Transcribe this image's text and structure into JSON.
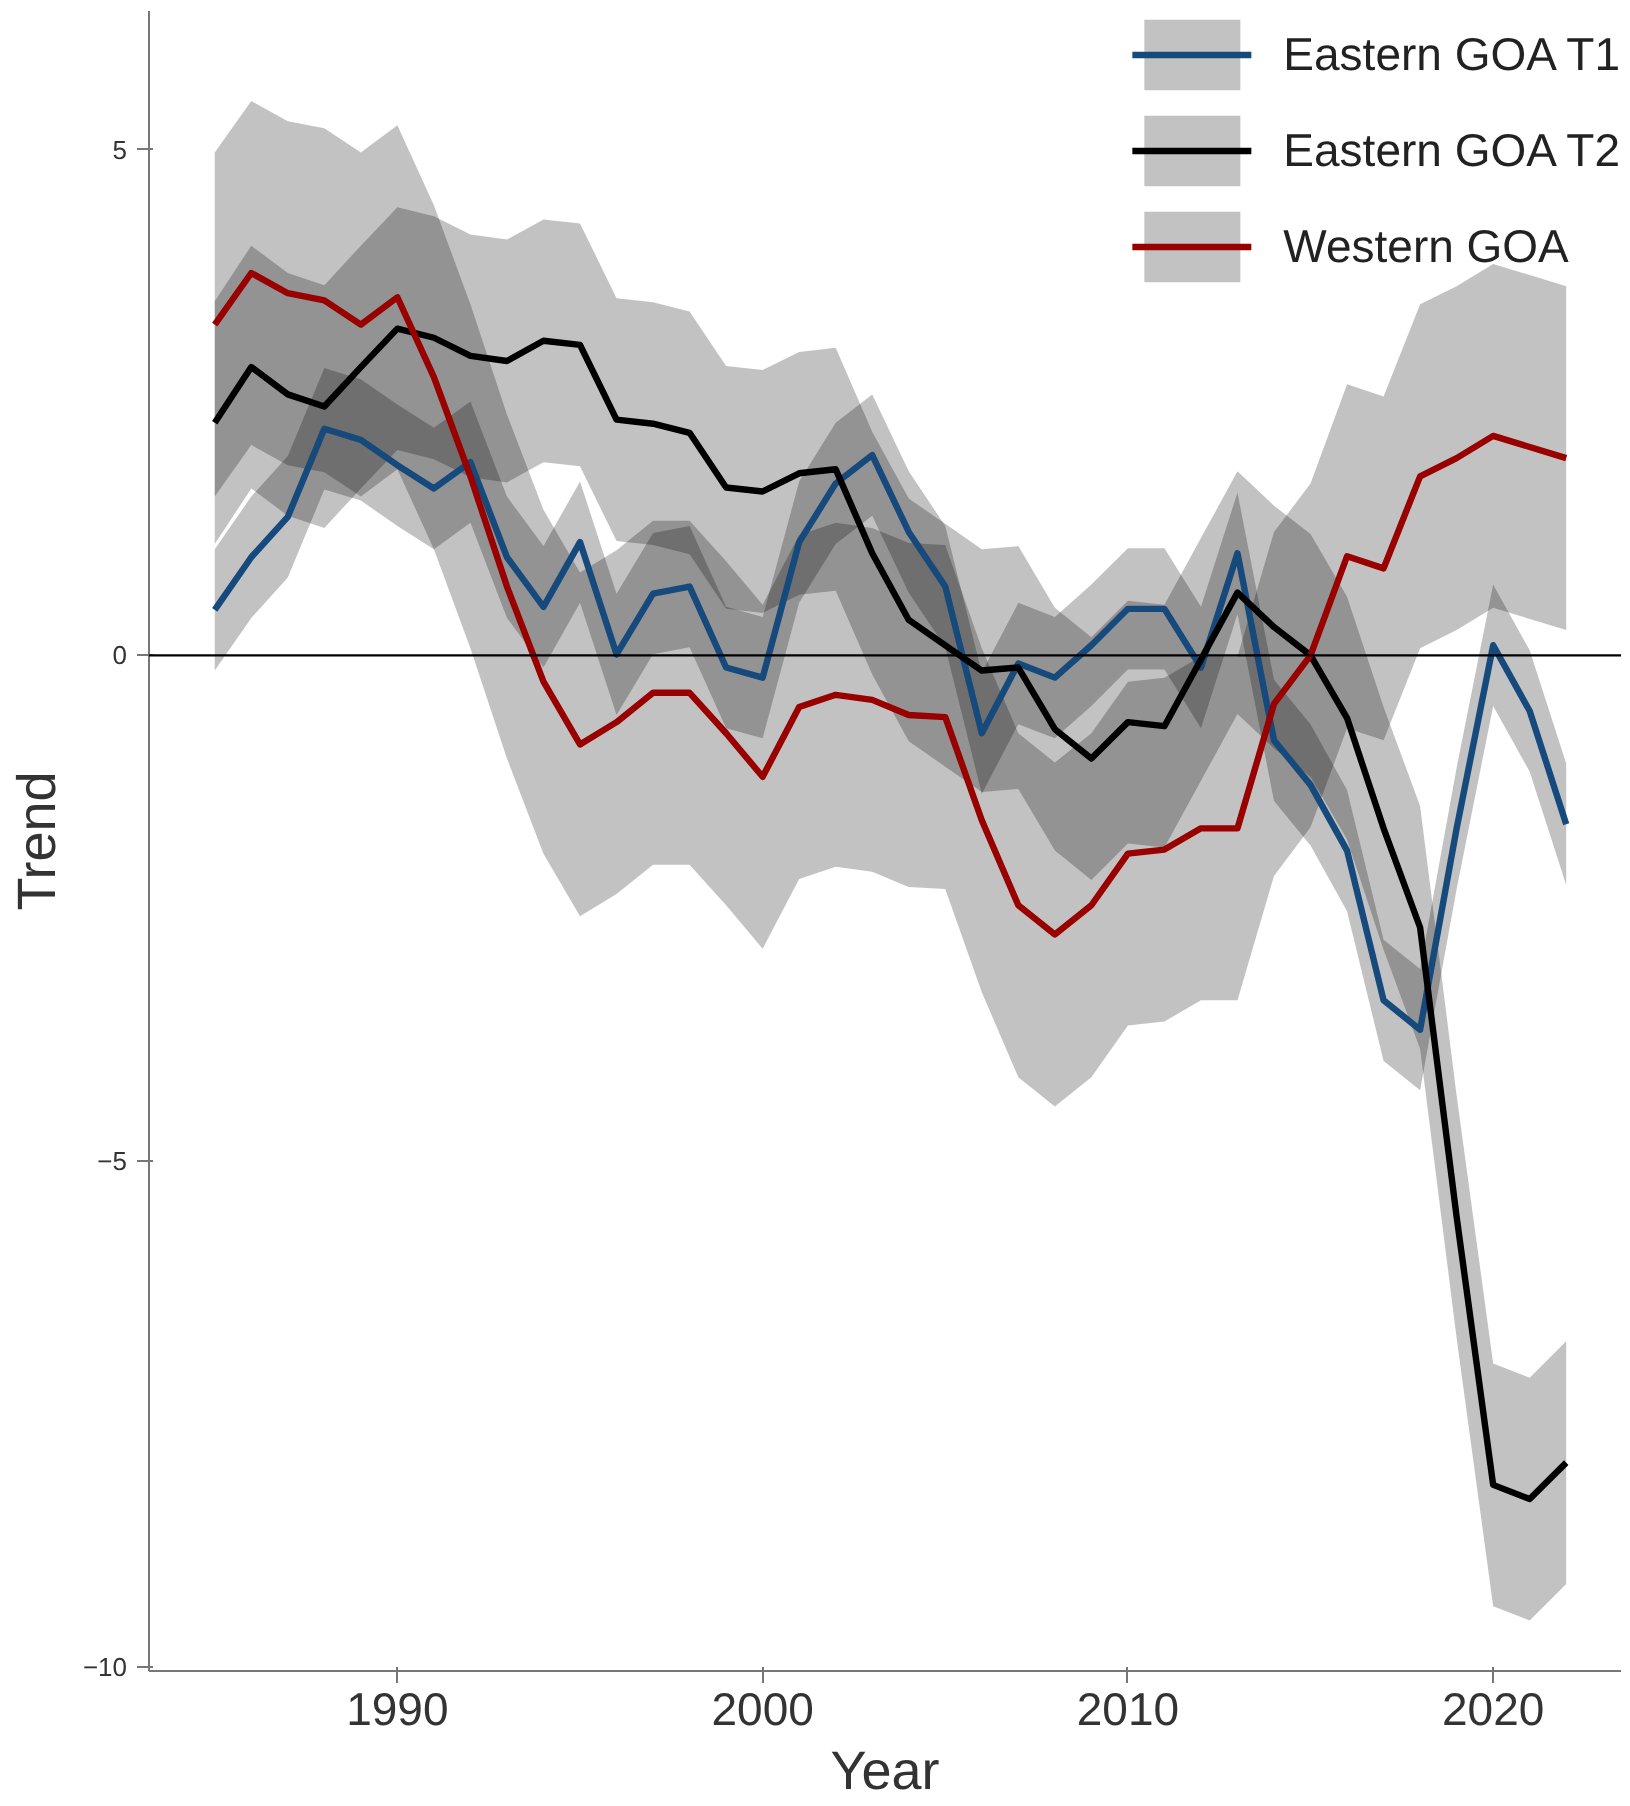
{
  "chart_data": {
    "type": "line",
    "xlabel": "Year",
    "ylabel": "Trend",
    "x": [
      1985,
      1986,
      1987,
      1988,
      1989,
      1990,
      1991,
      1992,
      1993,
      1994,
      1995,
      1996,
      1997,
      1998,
      1999,
      2000,
      2001,
      2002,
      2003,
      2004,
      2005,
      2006,
      2007,
      2008,
      2009,
      2010,
      2011,
      2012,
      2013,
      2014,
      2015,
      2016,
      2017,
      2018,
      2019,
      2020,
      2021,
      2022
    ],
    "xlim": [
      1983.2,
      2023.5
    ],
    "ylim": [
      -10.04,
      6.37
    ],
    "xticks": [
      1990,
      2000,
      2010,
      2020
    ],
    "yticks": [
      -10,
      -5,
      0,
      5
    ],
    "grid": false,
    "legend": "top right",
    "line_style": "solid",
    "marker": "none",
    "ref_lines": [
      {
        "axis": "y",
        "value": 0,
        "color": "#000000"
      }
    ],
    "series": [
      {
        "name": "Eastern GOA T1",
        "color": "#174a7c",
        "values": [
          0.45,
          0.97,
          1.37,
          2.24,
          2.13,
          1.88,
          1.65,
          1.91,
          0.97,
          0.48,
          1.12,
          0.01,
          0.61,
          0.68,
          -0.12,
          -0.22,
          1.12,
          1.7,
          1.98,
          1.22,
          0.68,
          -0.77,
          -0.08,
          -0.22,
          0.1,
          0.46,
          0.46,
          -0.12,
          1.01,
          -0.84,
          -1.28,
          -1.93,
          -3.41,
          -3.7,
          -1.71,
          0.1,
          -0.55,
          -1.67
        ],
        "lower": [
          -0.15,
          0.37,
          0.77,
          1.64,
          1.53,
          1.28,
          1.05,
          1.31,
          0.37,
          -0.12,
          0.52,
          -0.59,
          0.01,
          0.08,
          -0.72,
          -0.82,
          0.52,
          1.1,
          1.38,
          0.62,
          0.08,
          -1.37,
          -0.68,
          -0.82,
          -0.5,
          -0.14,
          -0.14,
          -0.72,
          0.41,
          -1.44,
          -1.88,
          -2.53,
          -4.01,
          -4.3,
          -2.31,
          -0.5,
          -1.15,
          -2.27
        ],
        "upper": [
          1.05,
          1.57,
          1.97,
          2.84,
          2.73,
          2.48,
          2.25,
          2.51,
          1.57,
          1.08,
          1.72,
          0.61,
          1.21,
          1.28,
          0.48,
          0.38,
          1.72,
          2.3,
          2.58,
          1.82,
          1.28,
          -0.17,
          0.52,
          0.38,
          0.7,
          1.06,
          1.06,
          0.48,
          1.61,
          -0.24,
          -0.68,
          -1.33,
          -2.81,
          -3.1,
          -1.11,
          0.7,
          0.05,
          -1.07
        ]
      },
      {
        "name": "Eastern GOA T2",
        "color": "#000000",
        "values": [
          2.3,
          2.85,
          2.58,
          2.46,
          2.85,
          3.23,
          3.14,
          2.96,
          2.91,
          3.11,
          3.07,
          2.33,
          2.29,
          2.2,
          1.66,
          1.62,
          1.8,
          1.84,
          1.01,
          0.35,
          0.1,
          -0.15,
          -0.12,
          -0.73,
          -1.02,
          -0.66,
          -0.7,
          -0.04,
          0.62,
          0.28,
          0,
          -0.62,
          -1.71,
          -2.69,
          -5.55,
          -8.2,
          -8.34,
          -7.98
        ],
        "lower": [
          1.1,
          1.65,
          1.38,
          1.26,
          1.65,
          2.03,
          1.94,
          1.76,
          1.71,
          1.91,
          1.87,
          1.13,
          1.09,
          1.0,
          0.46,
          0.42,
          0.6,
          0.64,
          -0.19,
          -0.85,
          -1.1,
          -1.35,
          -1.32,
          -1.93,
          -2.22,
          -1.86,
          -1.9,
          -1.24,
          -0.58,
          -0.92,
          -1.2,
          -1.82,
          -2.91,
          -3.89,
          -6.75,
          -9.4,
          -9.54,
          -9.18
        ],
        "upper": [
          3.5,
          4.05,
          3.78,
          3.66,
          4.05,
          4.43,
          4.34,
          4.16,
          4.11,
          4.31,
          4.27,
          3.53,
          3.49,
          3.4,
          2.86,
          2.82,
          3.0,
          3.04,
          2.21,
          1.55,
          1.3,
          1.05,
          1.08,
          0.47,
          0.18,
          0.54,
          0.5,
          1.16,
          1.82,
          1.48,
          1.2,
          0.58,
          -0.51,
          -1.49,
          -4.35,
          -7.0,
          -7.14,
          -6.78
        ]
      },
      {
        "name": "Western GOA",
        "color": "#990000",
        "values": [
          3.27,
          3.78,
          3.58,
          3.51,
          3.27,
          3.54,
          2.75,
          1.77,
          0.68,
          -0.26,
          -0.88,
          -0.66,
          -0.37,
          -0.37,
          -0.77,
          -1.2,
          -0.51,
          -0.39,
          -0.44,
          -0.59,
          -0.61,
          -1.63,
          -2.47,
          -2.76,
          -2.47,
          -1.96,
          -1.92,
          -1.71,
          -1.71,
          -0.48,
          0,
          0.98,
          0.86,
          1.77,
          1.95,
          2.17,
          2.06,
          1.95
        ],
        "lower": [
          1.57,
          2.08,
          1.88,
          1.81,
          1.57,
          1.84,
          1.05,
          0.07,
          -1.02,
          -1.96,
          -2.58,
          -2.36,
          -2.07,
          -2.07,
          -2.47,
          -2.9,
          -2.21,
          -2.09,
          -2.14,
          -2.29,
          -2.31,
          -3.33,
          -4.17,
          -4.46,
          -4.17,
          -3.66,
          -3.62,
          -3.41,
          -3.41,
          -2.18,
          -1.7,
          -0.72,
          -0.84,
          0.07,
          0.25,
          0.47,
          0.36,
          0.25
        ],
        "upper": [
          4.97,
          5.48,
          5.28,
          5.21,
          4.97,
          5.24,
          4.45,
          3.47,
          2.38,
          1.44,
          0.82,
          1.04,
          1.33,
          1.33,
          0.93,
          0.5,
          1.19,
          1.31,
          1.26,
          1.11,
          1.09,
          0.07,
          -0.77,
          -1.06,
          -0.77,
          -0.26,
          -0.22,
          -0.01,
          -0.01,
          1.22,
          1.7,
          2.68,
          2.56,
          3.47,
          3.65,
          3.87,
          3.76,
          3.65
        ]
      }
    ]
  }
}
